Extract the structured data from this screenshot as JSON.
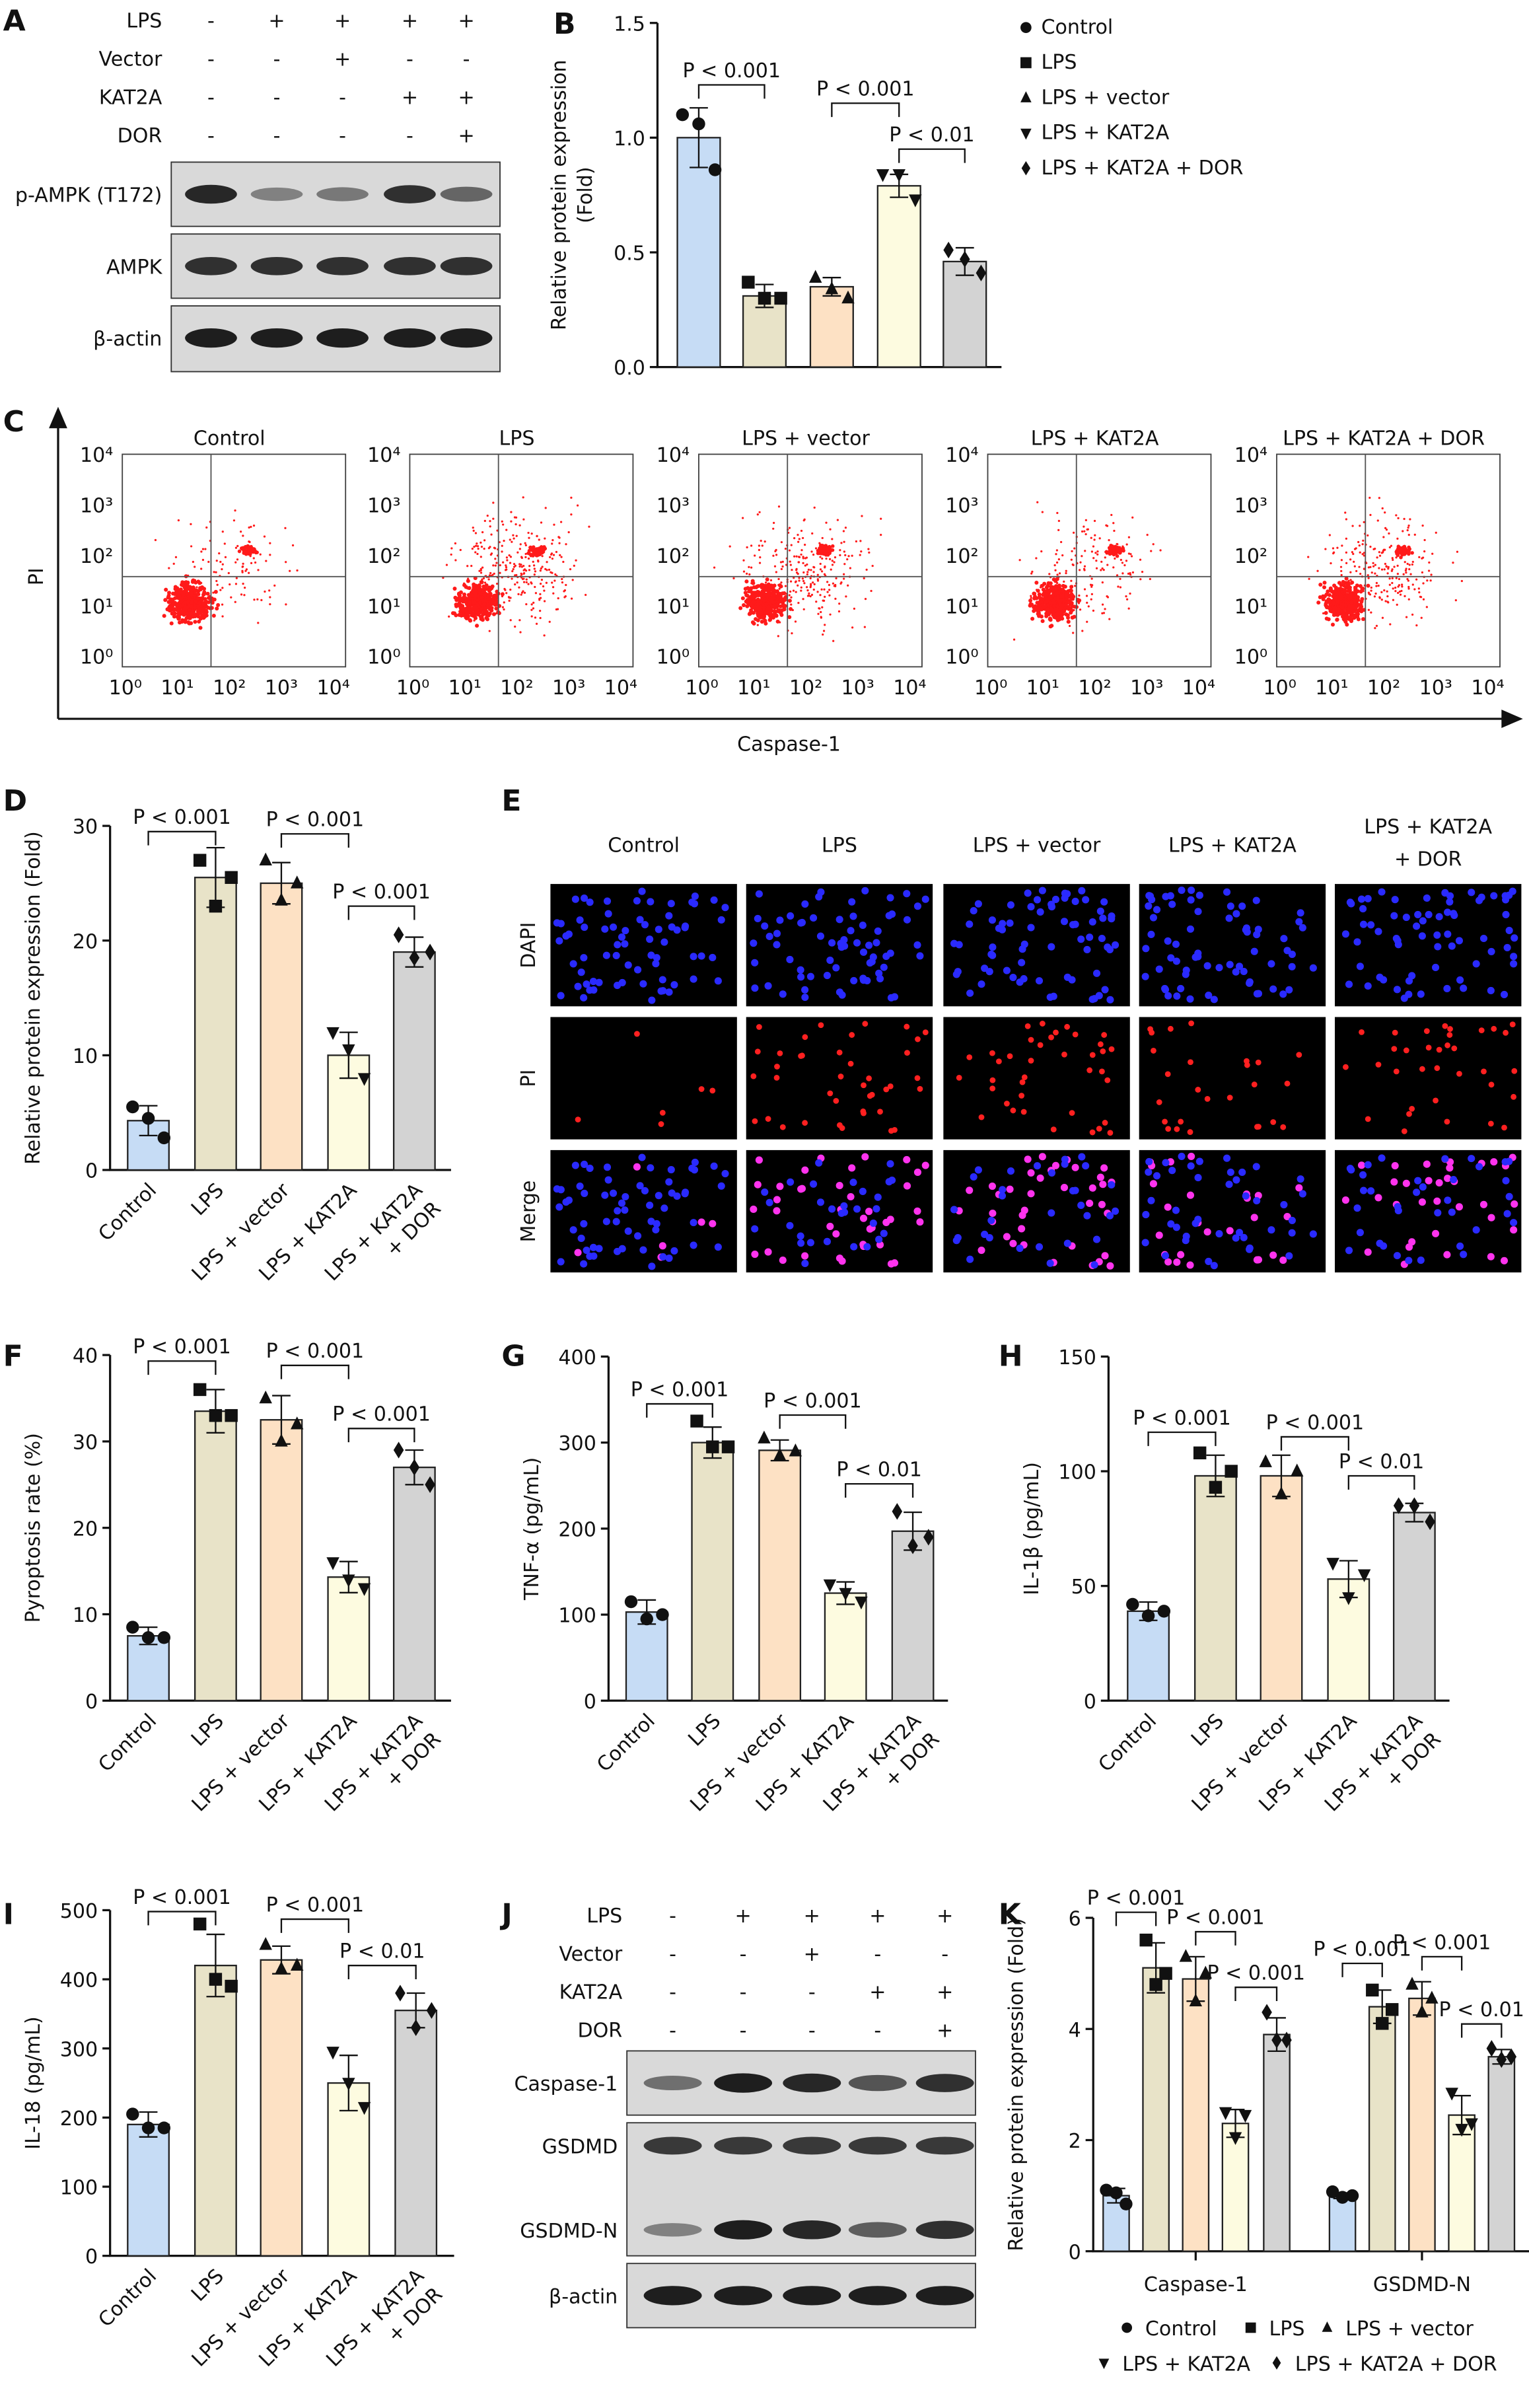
{
  "groups": [
    "Control",
    "LPS",
    "LPS + vector",
    "LPS + KAT2A",
    "LPS + KAT2A + DOR"
  ],
  "colors": {
    "bar_fills": [
      "#c6dcf5",
      "#e8e3c8",
      "#fde1c4",
      "#fdfbe0",
      "#d3d3d3"
    ],
    "dapi": "#2a2aff",
    "pi": "#ff2020",
    "merge_pi": "#ff33ee",
    "flow_dots": "#ff1a1a"
  },
  "markers": [
    "circle",
    "square",
    "triangle-up",
    "triangle-down",
    "diamond"
  ],
  "panel_labels": {
    "A": "A",
    "B": "B",
    "C": "C",
    "D": "D",
    "E": "E",
    "F": "F",
    "G": "G",
    "H": "H",
    "I": "I",
    "J": "J",
    "K": "K"
  },
  "blot_A": {
    "conditions": [
      {
        "name": "LPS",
        "signs": [
          "-",
          "+",
          "+",
          "+",
          "+"
        ]
      },
      {
        "name": "Vector",
        "signs": [
          "-",
          "-",
          "+",
          "-",
          "-"
        ]
      },
      {
        "name": "KAT2A",
        "signs": [
          "-",
          "-",
          "-",
          "+",
          "+"
        ]
      },
      {
        "name": "DOR",
        "signs": [
          "-",
          "-",
          "-",
          "-",
          "+"
        ]
      }
    ],
    "rows": [
      {
        "label": "p-AMPK (T172)",
        "band_intensity": [
          0.9,
          0.4,
          0.45,
          0.85,
          0.55
        ]
      },
      {
        "label": "AMPK",
        "band_intensity": [
          0.85,
          0.85,
          0.85,
          0.85,
          0.85
        ]
      },
      {
        "label": "β-actin",
        "band_intensity": [
          0.95,
          0.95,
          0.95,
          0.95,
          0.95
        ]
      }
    ]
  },
  "flow_C": {
    "plots": [
      {
        "title": "Control"
      },
      {
        "title": "LPS"
      },
      {
        "title": "LPS + vector"
      },
      {
        "title": "LPS + KAT2A"
      },
      {
        "title": "LPS + KAT2A + DOR"
      }
    ],
    "tick_labels": [
      "10⁰",
      "10¹",
      "10²",
      "10³",
      "10⁴"
    ],
    "xlabel": "Caspase-1",
    "ylabel": "PI"
  },
  "images_E": {
    "columns": [
      [
        "Control"
      ],
      [
        "LPS"
      ],
      [
        "LPS + vector"
      ],
      [
        "LPS + KAT2A"
      ],
      [
        "LPS + KAT2A",
        "+ DOR"
      ]
    ],
    "rows": [
      "DAPI",
      "PI",
      "Merge"
    ]
  },
  "blot_J": {
    "conditions": [
      {
        "name": "LPS",
        "signs": [
          "-",
          "+",
          "+",
          "+",
          "+"
        ]
      },
      {
        "name": "Vector",
        "signs": [
          "-",
          "-",
          "+",
          "-",
          "-"
        ]
      },
      {
        "name": "KAT2A",
        "signs": [
          "-",
          "-",
          "-",
          "+",
          "+"
        ]
      },
      {
        "name": "DOR",
        "signs": [
          "-",
          "-",
          "-",
          "-",
          "+"
        ]
      }
    ],
    "rows": [
      {
        "label": "Caspase-1",
        "band_intensity": [
          0.5,
          0.95,
          0.9,
          0.65,
          0.85
        ]
      },
      {
        "label": "GSDMD",
        "band_intensity": [
          0.8,
          0.8,
          0.8,
          0.8,
          0.8
        ]
      },
      {
        "label": "GSDMD-N",
        "band_intensity": [
          0.4,
          0.95,
          0.9,
          0.6,
          0.85
        ]
      },
      {
        "label": "β-actin",
        "band_intensity": [
          0.95,
          0.95,
          0.95,
          0.95,
          0.95
        ]
      }
    ]
  },
  "chart_data": [
    {
      "id": "B",
      "type": "bar",
      "ylabel": [
        "Relative protein expression",
        "(Fold)"
      ],
      "ylim": [
        0,
        1.5
      ],
      "yticks": [
        "0.0",
        "0.5",
        "1.0",
        "1.5"
      ],
      "tick_labels": [],
      "values": [
        1.0,
        0.31,
        0.35,
        0.79,
        0.46
      ],
      "errors": [
        0.13,
        0.05,
        0.04,
        0.05,
        0.06
      ],
      "points": [
        [
          1.1,
          1.06,
          0.86
        ],
        [
          0.37,
          0.3,
          0.3
        ],
        [
          0.39,
          0.34,
          0.3
        ],
        [
          0.84,
          0.84,
          0.73
        ],
        [
          0.51,
          0.47,
          0.41
        ]
      ],
      "significance": [
        {
          "pair": [
            0,
            1
          ],
          "y": 1.23,
          "label": "P < 0.001"
        },
        {
          "pair": [
            2,
            3
          ],
          "y": 1.15,
          "label": "P < 0.001"
        },
        {
          "pair": [
            3,
            4
          ],
          "y": 0.95,
          "label": "P < 0.01"
        }
      ],
      "legend": {
        "position": "right",
        "entries": [
          "Control",
          "LPS",
          "LPS + vector",
          "LPS + KAT2A",
          "LPS + KAT2A + DOR"
        ]
      }
    },
    {
      "id": "D",
      "type": "bar",
      "ylabel": [
        "Relative protein expression (Fold)"
      ],
      "ylim": [
        0,
        30
      ],
      "yticks": [
        "0",
        "10",
        "20",
        "30"
      ],
      "tick_labels": [
        [
          "Control"
        ],
        [
          "LPS"
        ],
        [
          "LPS + vector"
        ],
        [
          "LPS + KAT2A"
        ],
        [
          "LPS + KAT2A",
          "+ DOR"
        ]
      ],
      "values": [
        4.3,
        25.5,
        25.0,
        10.0,
        19.0
      ],
      "errors": [
        1.3,
        2.6,
        1.8,
        2.0,
        1.3
      ],
      "points": [
        [
          5.5,
          4.5,
          2.8
        ],
        [
          27,
          23,
          25.5
        ],
        [
          27,
          23.5,
          25
        ],
        [
          12,
          10.5,
          8
        ],
        [
          20.5,
          18.5,
          19
        ]
      ],
      "significance": [
        {
          "pair": [
            0,
            1
          ],
          "y": 29.5,
          "label": "P < 0.001"
        },
        {
          "pair": [
            2,
            3
          ],
          "y": 29.3,
          "label": "P < 0.001"
        },
        {
          "pair": [
            3,
            4
          ],
          "y": 23,
          "label": "P < 0.001"
        }
      ]
    },
    {
      "id": "F",
      "type": "bar",
      "ylabel": [
        "Pyroptosis rate (%)"
      ],
      "ylim": [
        0,
        40
      ],
      "yticks": [
        "0",
        "10",
        "20",
        "30",
        "40"
      ],
      "tick_labels": [
        [
          "Control"
        ],
        [
          "LPS"
        ],
        [
          "LPS + vector"
        ],
        [
          "LPS + KAT2A"
        ],
        [
          "LPS + KAT2A",
          "+ DOR"
        ]
      ],
      "values": [
        7.5,
        33.5,
        32.5,
        14.3,
        27.0
      ],
      "errors": [
        1.0,
        2.5,
        2.8,
        1.8,
        2.0
      ],
      "points": [
        [
          8.5,
          7.3,
          7.3
        ],
        [
          36,
          33,
          33
        ],
        [
          35,
          30,
          32
        ],
        [
          16,
          14,
          13
        ],
        [
          29,
          27,
          25
        ]
      ],
      "significance": [
        {
          "pair": [
            0,
            1
          ],
          "y": 39.3,
          "label": "P < 0.001"
        },
        {
          "pair": [
            2,
            3
          ],
          "y": 38.8,
          "label": "P < 0.001"
        },
        {
          "pair": [
            3,
            4
          ],
          "y": 31.5,
          "label": "P < 0.001"
        }
      ]
    },
    {
      "id": "G",
      "type": "bar",
      "ylabel": [
        "TNF-α (pg/mL)"
      ],
      "ylim": [
        0,
        400
      ],
      "yticks": [
        "0",
        "100",
        "200",
        "300",
        "400"
      ],
      "tick_labels": [
        [
          "Control"
        ],
        [
          "LPS"
        ],
        [
          "LPS + vector"
        ],
        [
          "LPS + KAT2A"
        ],
        [
          "LPS + KAT2A",
          "+ DOR"
        ]
      ],
      "values": [
        103,
        300,
        291,
        125,
        197
      ],
      "errors": [
        14,
        18,
        12,
        13,
        22
      ],
      "points": [
        [
          115,
          95,
          100
        ],
        [
          325,
          295,
          295
        ],
        [
          305,
          285,
          290
        ],
        [
          135,
          125,
          115
        ],
        [
          220,
          180,
          190
        ]
      ],
      "significance": [
        {
          "pair": [
            0,
            1
          ],
          "y": 345,
          "label": "P < 0.001"
        },
        {
          "pair": [
            2,
            3
          ],
          "y": 332,
          "label": "P < 0.001"
        },
        {
          "pair": [
            3,
            4
          ],
          "y": 252,
          "label": "P < 0.01"
        }
      ]
    },
    {
      "id": "H",
      "type": "bar",
      "ylabel": [
        "IL-1β (pg/mL)"
      ],
      "ylim": [
        0,
        150
      ],
      "yticks": [
        "0",
        "50",
        "100",
        "150"
      ],
      "tick_labels": [
        [
          "Control"
        ],
        [
          "LPS"
        ],
        [
          "LPS + vector"
        ],
        [
          "LPS + KAT2A"
        ],
        [
          "LPS + KAT2A",
          "+ DOR"
        ]
      ],
      "values": [
        39,
        98,
        98,
        53,
        82
      ],
      "errors": [
        4,
        9,
        9,
        8,
        4
      ],
      "points": [
        [
          42,
          37,
          39
        ],
        [
          108,
          93,
          100
        ],
        [
          104,
          90,
          100
        ],
        [
          60,
          45,
          55
        ],
        [
          85,
          85,
          78
        ]
      ],
      "significance": [
        {
          "pair": [
            0,
            1
          ],
          "y": 117,
          "label": "P < 0.001"
        },
        {
          "pair": [
            2,
            3
          ],
          "y": 115,
          "label": "P < 0.001"
        },
        {
          "pair": [
            3,
            4
          ],
          "y": 98,
          "label": "P < 0.01"
        }
      ]
    },
    {
      "id": "I",
      "type": "bar",
      "ylabel": [
        "IL-18 (pg/mL)"
      ],
      "ylim": [
        0,
        500
      ],
      "yticks": [
        "0",
        "100",
        "200",
        "300",
        "400",
        "500"
      ],
      "tick_labels": [
        [
          "Control"
        ],
        [
          "LPS"
        ],
        [
          "LPS + vector"
        ],
        [
          "LPS + KAT2A"
        ],
        [
          "LPS + KAT2A",
          "+ DOR"
        ]
      ],
      "values": [
        190,
        420,
        428,
        250,
        355
      ],
      "errors": [
        18,
        45,
        20,
        40,
        25
      ],
      "points": [
        [
          205,
          185,
          185
        ],
        [
          480,
          400,
          390
        ],
        [
          450,
          415,
          420
        ],
        [
          295,
          250,
          215
        ],
        [
          380,
          330,
          355
        ]
      ],
      "significance": [
        {
          "pair": [
            0,
            1
          ],
          "y": 498,
          "label": "P < 0.001"
        },
        {
          "pair": [
            2,
            3
          ],
          "y": 487,
          "label": "P < 0.001"
        },
        {
          "pair": [
            3,
            4
          ],
          "y": 420,
          "label": "P < 0.01"
        }
      ]
    },
    {
      "id": "K",
      "type": "grouped_bar",
      "ylabel": [
        "Relative protein expression (Fold)"
      ],
      "ylim": [
        0,
        6
      ],
      "yticks": [
        "0",
        "2",
        "4",
        "6"
      ],
      "groups": [
        {
          "label": "Caspase-1",
          "values": [
            1.0,
            5.1,
            4.9,
            2.3,
            3.9
          ],
          "errors": [
            0.13,
            0.45,
            0.4,
            0.25,
            0.3
          ],
          "points": [
            [
              1.1,
              1.05,
              0.85
            ],
            [
              5.6,
              4.8,
              5.0
            ],
            [
              5.3,
              4.5,
              5.0
            ],
            [
              2.5,
              2.05,
              2.45
            ],
            [
              4.3,
              3.8,
              3.8
            ]
          ],
          "significance": [
            {
              "pair": [
                0,
                1
              ],
              "y": 6.1,
              "label": "P < 0.001"
            },
            {
              "pair": [
                2,
                3
              ],
              "y": 5.75,
              "label": "P < 0.001"
            },
            {
              "pair": [
                3,
                4
              ],
              "y": 4.75,
              "label": "P < 0.001"
            }
          ]
        },
        {
          "label": "GSDMD-N",
          "values": [
            1.0,
            4.4,
            4.55,
            2.45,
            3.5
          ],
          "errors": [
            0.05,
            0.3,
            0.3,
            0.35,
            0.13
          ],
          "points": [
            [
              1.07,
              0.97,
              1.0
            ],
            [
              4.7,
              4.1,
              4.35
            ],
            [
              4.8,
              4.3,
              4.55
            ],
            [
              2.85,
              2.2,
              2.3
            ],
            [
              3.65,
              3.45,
              3.5
            ]
          ],
          "significance": [
            {
              "pair": [
                0,
                1
              ],
              "y": 5.18,
              "label": "P < 0.001"
            },
            {
              "pair": [
                2,
                3
              ],
              "y": 5.3,
              "label": "P < 0.001"
            },
            {
              "pair": [
                3,
                4
              ],
              "y": 4.09,
              "label": "P < 0.01"
            }
          ]
        }
      ],
      "legend": {
        "position": "bottom",
        "entries": [
          "Control",
          "LPS",
          "LPS + vector",
          "LPS + KAT2A",
          "LPS + KAT2A + DOR"
        ]
      }
    }
  ]
}
